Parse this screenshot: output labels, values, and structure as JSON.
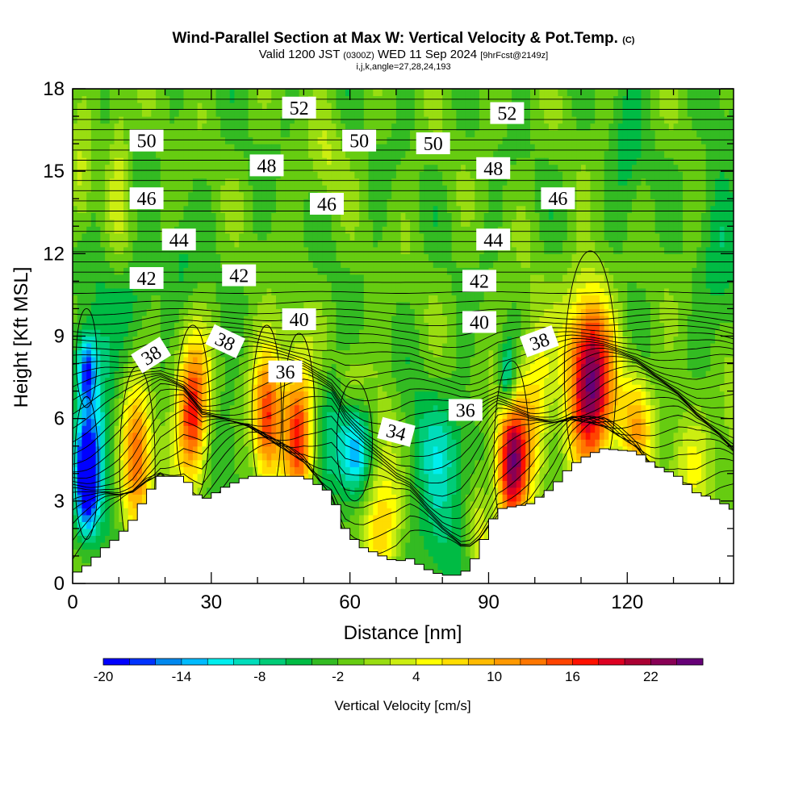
{
  "header": {
    "title": "Wind-Parallel Section at Max W: Vertical Velocity & Pot.Temp.",
    "copyright": "(C)",
    "valid_prefix": "Valid 1200 JST",
    "valid_utc": "(0300Z)",
    "valid_date": "WED 11 Sep 2024",
    "forecast": "[9hrFcst@2149z]",
    "indices": "i,j,k,angle=27,28,24,193"
  },
  "colors": {
    "bins": [
      "#0000ff",
      "#0033ff",
      "#0088ee",
      "#00bbff",
      "#00eeee",
      "#00ddbb",
      "#00cc77",
      "#00bb44",
      "#33bb22",
      "#66cc11",
      "#99dd11",
      "#ccee11",
      "#ffff00",
      "#ffdd00",
      "#ffbb00",
      "#ff9900",
      "#ff7700",
      "#ff4400",
      "#ff1100",
      "#dd0022",
      "#aa0033",
      "#880055",
      "#660077"
    ]
  },
  "chart_data": {
    "type": "heatmap",
    "xlabel": "Distance [nm]",
    "ylabel": "Height [Kft MSL]",
    "xlim": [
      0,
      143
    ],
    "ylim": [
      0,
      18
    ],
    "x_ticks": [
      0,
      30,
      60,
      90,
      120
    ],
    "y_ticks": [
      0,
      3,
      6,
      9,
      12,
      15,
      18
    ],
    "colorbar": {
      "label": "Vertical Velocity [cm/s]",
      "min": -20,
      "max": 26,
      "step": 2,
      "tick_labels": [
        "-20",
        "-14",
        "-8",
        "-2",
        "4",
        "10",
        "16",
        "22"
      ]
    },
    "terrain": [
      [
        0,
        0.3
      ],
      [
        3.5,
        0.7
      ],
      [
        7,
        1.3
      ],
      [
        10,
        1.7
      ],
      [
        13,
        2.3
      ],
      [
        16,
        3.2
      ],
      [
        19,
        3.9
      ],
      [
        24,
        3.9
      ],
      [
        28,
        3.0
      ],
      [
        33,
        3.5
      ],
      [
        38,
        3.9
      ],
      [
        50,
        3.9
      ],
      [
        56,
        3.3
      ],
      [
        59,
        2.0
      ],
      [
        61,
        1.6
      ],
      [
        63,
        1.3
      ],
      [
        67,
        1.0
      ],
      [
        70,
        0.8
      ],
      [
        73,
        0.9
      ],
      [
        77,
        0.5
      ],
      [
        80,
        0.3
      ],
      [
        84,
        0.3
      ],
      [
        86,
        0.6
      ],
      [
        88,
        1.2
      ],
      [
        90,
        2.0
      ],
      [
        92,
        2.7
      ],
      [
        99,
        2.9
      ],
      [
        104,
        3.5
      ],
      [
        108,
        4.3
      ],
      [
        112,
        4.7
      ],
      [
        115,
        4.9
      ],
      [
        122,
        4.8
      ],
      [
        126,
        4.3
      ],
      [
        131,
        3.9
      ],
      [
        135,
        3.3
      ],
      [
        140,
        3.0
      ],
      [
        143,
        2.7
      ]
    ],
    "w_field": [
      {
        "x": 3,
        "z": 3.8,
        "sx": 1.6,
        "sz": 1.3,
        "w": -20
      },
      {
        "x": 3,
        "z": 7.8,
        "sx": 1.4,
        "sz": 0.9,
        "w": -14
      },
      {
        "x": 5,
        "z": 5.8,
        "sx": 2.8,
        "sz": 3.0,
        "w": -8
      },
      {
        "x": 14,
        "z": 3.9,
        "sx": 2.4,
        "sz": 1.8,
        "w": 13
      },
      {
        "x": 14,
        "z": 6.0,
        "sx": 2.0,
        "sz": 1.4,
        "w": 5
      },
      {
        "x": 26,
        "z": 5.8,
        "sx": 2.3,
        "sz": 1.6,
        "w": 16
      },
      {
        "x": 26,
        "z": 7.3,
        "sx": 2.8,
        "sz": 1.4,
        "w": 6
      },
      {
        "x": 33,
        "z": 5.0,
        "sx": 2.5,
        "sz": 2.0,
        "w": -3
      },
      {
        "x": 42,
        "z": 5.8,
        "sx": 2.0,
        "sz": 1.6,
        "w": 15
      },
      {
        "x": 49,
        "z": 5.3,
        "sx": 2.2,
        "sz": 1.7,
        "w": 16
      },
      {
        "x": 45,
        "z": 7.3,
        "sx": 4.5,
        "sz": 1.6,
        "w": 5
      },
      {
        "x": 56,
        "z": 6.0,
        "sx": 2.2,
        "sz": 2.0,
        "w": -4
      },
      {
        "x": 61,
        "z": 4.8,
        "sx": 2.4,
        "sz": 1.1,
        "w": -13
      },
      {
        "x": 67,
        "z": 2.4,
        "sx": 3.0,
        "sz": 1.6,
        "w": 10
      },
      {
        "x": 68,
        "z": 5.5,
        "sx": 2.0,
        "sz": 1.2,
        "w": 3
      },
      {
        "x": 80,
        "z": 1.6,
        "sx": 3.0,
        "sz": 1.6,
        "w": -5
      },
      {
        "x": 78,
        "z": 4.6,
        "sx": 5.5,
        "sz": 1.6,
        "w": -6
      },
      {
        "x": 88,
        "z": 2.0,
        "sx": 1.5,
        "sz": 1.3,
        "w": 6
      },
      {
        "x": 95,
        "z": 4.3,
        "sx": 2.4,
        "sz": 1.7,
        "w": 24
      },
      {
        "x": 100,
        "z": 6.8,
        "sx": 2.6,
        "sz": 2.0,
        "w": 8
      },
      {
        "x": 94,
        "z": 7.5,
        "sx": 1.3,
        "sz": 0.9,
        "w": -10
      },
      {
        "x": 112,
        "z": 7.3,
        "sx": 3.5,
        "sz": 2.2,
        "w": 26
      },
      {
        "x": 122,
        "z": 5.8,
        "sx": 2.5,
        "sz": 1.4,
        "w": 10
      },
      {
        "x": 134,
        "z": 4.5,
        "sx": 4.0,
        "sz": 1.5,
        "w": 5
      },
      {
        "x": 142,
        "z": 5.0,
        "sx": 2.0,
        "sz": 2.0,
        "w": 3
      },
      {
        "x": 10,
        "z": 16.0,
        "sx": 1.5,
        "sz": 2.5,
        "w": 4
      },
      {
        "x": 2,
        "z": 14.5,
        "sx": 1.5,
        "sz": 1.5,
        "w": 4
      },
      {
        "x": 55,
        "z": 15.5,
        "sx": 2.5,
        "sz": 1.2,
        "w": 3
      },
      {
        "x": 60,
        "z": 7.6,
        "sx": 2.5,
        "sz": 0.8,
        "w": 3
      },
      {
        "x": 120,
        "z": 15.5,
        "sx": 2.5,
        "sz": 2.5,
        "w": -3
      },
      {
        "x": 140,
        "z": 12.5,
        "sx": 3.0,
        "sz": 4.0,
        "w": -3
      },
      {
        "x": 23,
        "z": 11.5,
        "sx": 2.5,
        "sz": 1.2,
        "w": -3
      },
      {
        "x": 14,
        "z": 10.5,
        "sx": 3.0,
        "sz": 1.2,
        "w": -3
      }
    ],
    "theta_labels": [
      {
        "text": "52",
        "x": 49,
        "z": 17.3
      },
      {
        "text": "52",
        "x": 94,
        "z": 17.1
      },
      {
        "text": "50",
        "x": 16,
        "z": 16.1
      },
      {
        "text": "50",
        "x": 62,
        "z": 16.1
      },
      {
        "text": "50",
        "x": 78,
        "z": 16.0
      },
      {
        "text": "48",
        "x": 42,
        "z": 15.2
      },
      {
        "text": "48",
        "x": 91,
        "z": 15.1
      },
      {
        "text": "46",
        "x": 16,
        "z": 14.0
      },
      {
        "text": "46",
        "x": 55,
        "z": 13.8
      },
      {
        "text": "46",
        "x": 105,
        "z": 14.0
      },
      {
        "text": "44",
        "x": 23,
        "z": 12.5
      },
      {
        "text": "44",
        "x": 91,
        "z": 12.5
      },
      {
        "text": "42",
        "x": 16,
        "z": 11.1
      },
      {
        "text": "42",
        "x": 36,
        "z": 11.2
      },
      {
        "text": "42",
        "x": 88,
        "z": 11.0
      },
      {
        "text": "40",
        "x": 49,
        "z": 9.6
      },
      {
        "text": "40",
        "x": 88,
        "z": 9.5
      },
      {
        "text": "38",
        "x": 17,
        "z": 8.3,
        "angle": -32
      },
      {
        "text": "38",
        "x": 33,
        "z": 8.8,
        "angle": 25
      },
      {
        "text": "38",
        "x": 101,
        "z": 8.8,
        "angle": -20
      },
      {
        "text": "36",
        "x": 46,
        "z": 7.7
      },
      {
        "text": "36",
        "x": 85,
        "z": 6.3
      },
      {
        "text": "34",
        "x": 70,
        "z": 5.5,
        "angle": 15
      }
    ]
  }
}
